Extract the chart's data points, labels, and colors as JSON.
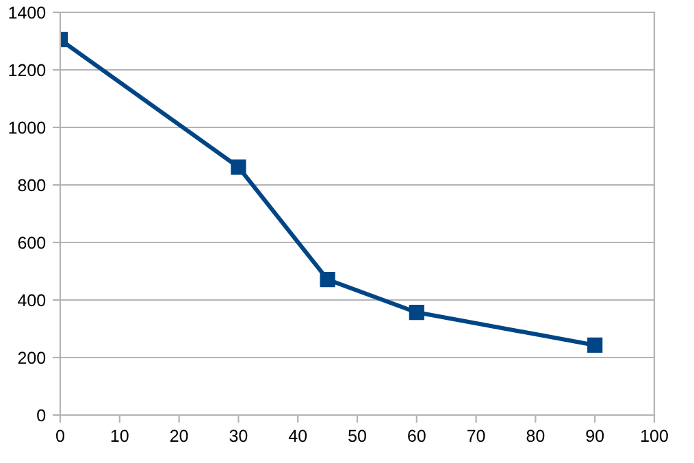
{
  "chart_data": {
    "type": "line",
    "x": [
      0,
      30,
      45,
      60,
      90
    ],
    "series": [
      {
        "color": "#004586",
        "values": [
          1305,
          862,
          471,
          357,
          243
        ]
      }
    ],
    "xlim": [
      0,
      100
    ],
    "xticks": [
      0,
      10,
      20,
      30,
      40,
      50,
      60,
      70,
      80,
      90,
      100
    ],
    "ylim": [
      0,
      1400
    ],
    "yticks": [
      0,
      200,
      400,
      600,
      800,
      1000,
      1200,
      1400
    ],
    "grid": "y",
    "marker": "square",
    "line_style": "solid",
    "legend": false
  }
}
